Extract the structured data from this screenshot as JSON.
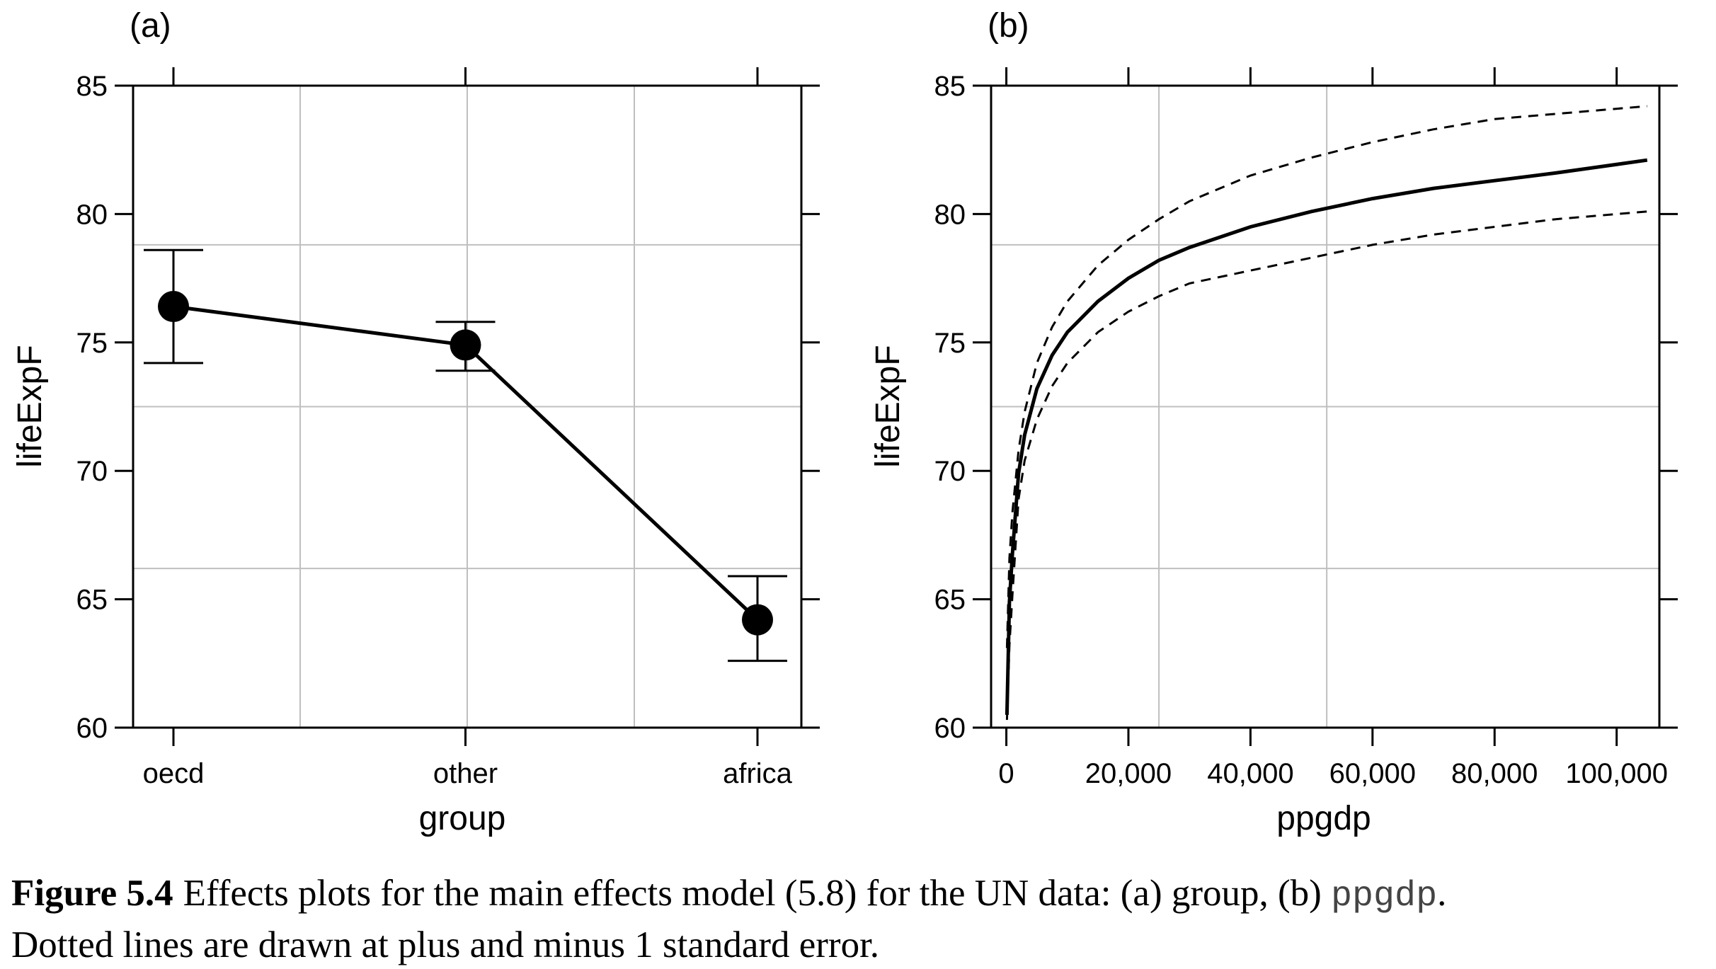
{
  "chart_data": [
    {
      "panel_label": "(a)",
      "type": "line",
      "xlabel": "group",
      "ylabel": "lifeExpF",
      "categories": [
        "oecd",
        "other",
        "africa"
      ],
      "values": [
        76.4,
        74.9,
        64.2
      ],
      "lower": [
        74.2,
        73.9,
        62.6
      ],
      "upper": [
        78.6,
        75.8,
        65.9
      ],
      "ylim": [
        60,
        85
      ],
      "yticks": [
        "60",
        "65",
        "70",
        "75",
        "80",
        "85"
      ],
      "ytick_values": [
        60,
        65,
        70,
        75,
        80,
        85
      ],
      "grid": true,
      "grid_y_values": [
        66.2,
        72.5,
        78.8
      ]
    },
    {
      "panel_label": "(b)",
      "type": "line",
      "xlabel": "ppgdp",
      "ylabel": "lifeExpF",
      "x": [
        100,
        500,
        1000,
        2000,
        3000,
        5000,
        7500,
        10000,
        15000,
        20000,
        25000,
        30000,
        40000,
        50000,
        60000,
        70000,
        80000,
        90000,
        105000
      ],
      "series": [
        {
          "style": "solid",
          "values": [
            60.5,
            64.9,
            66.8,
            69.9,
            71.4,
            73.2,
            74.5,
            75.4,
            76.6,
            77.5,
            78.2,
            78.7,
            79.5,
            80.1,
            80.6,
            81.0,
            81.3,
            81.6,
            82.1
          ]
        },
        {
          "style": "dashed",
          "values": [
            63.1,
            66.6,
            68.4,
            70.8,
            72.3,
            74.2,
            75.6,
            76.6,
            78.0,
            79.0,
            79.8,
            80.5,
            81.5,
            82.2,
            82.8,
            83.3,
            83.7,
            83.9,
            84.2
          ]
        },
        {
          "style": "dashed",
          "values": [
            60.3,
            63.2,
            65.2,
            68.9,
            70.4,
            72.0,
            73.3,
            74.2,
            75.4,
            76.2,
            76.8,
            77.3,
            77.8,
            78.3,
            78.8,
            79.2,
            79.5,
            79.8,
            80.1
          ]
        }
      ],
      "xlim": [
        -2500,
        107000
      ],
      "xticks": [
        "0",
        "20,000",
        "40,000",
        "60,000",
        "80,000",
        "100,000"
      ],
      "xtick_values": [
        0,
        20000,
        40000,
        60000,
        80000,
        100000
      ],
      "ylim": [
        60,
        85
      ],
      "yticks": [
        "60",
        "65",
        "70",
        "75",
        "80",
        "85"
      ],
      "ytick_values": [
        60,
        65,
        70,
        75,
        80,
        85
      ],
      "grid": true,
      "grid_x_values": [
        25000,
        52500
      ],
      "grid_y_values": [
        66.2,
        72.5,
        78.8
      ]
    }
  ],
  "caption": {
    "figure_number": "Figure 5.4",
    "text_before": "Effects plots for the main effects model (5.8) for the UN data: (a) group, (b) ",
    "code": "ppgdp",
    "text_after": ".",
    "line2": "Dotted lines are drawn at plus and minus 1 standard error."
  },
  "colors": {
    "line": "#000000",
    "grid": "#bfbfbf",
    "frame": "#000000"
  }
}
